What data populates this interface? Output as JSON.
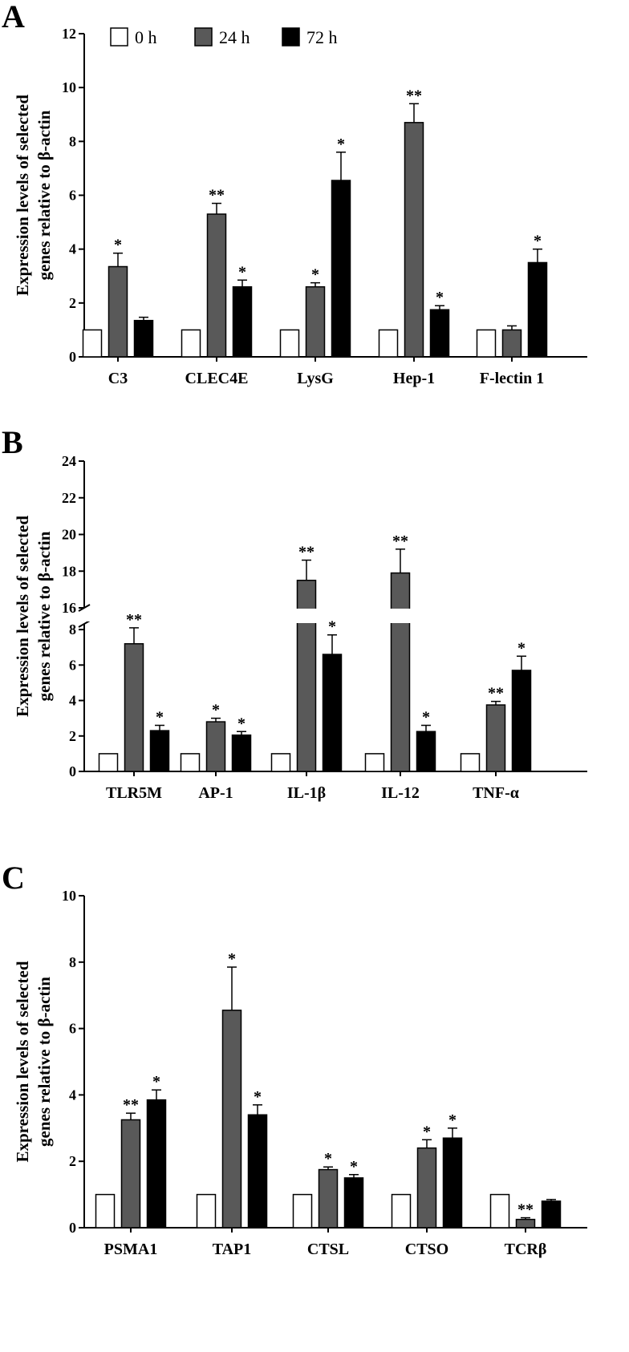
{
  "colors": {
    "0 h": "#ffffff",
    "24 h": "#595959",
    "72 h": "#000000",
    "axis": "#000000"
  },
  "legend": {
    "items": [
      "0 h",
      "24 h",
      "72 h"
    ],
    "placement": "top"
  },
  "chart_data": [
    {
      "panel": "A",
      "type": "bar",
      "ylabel_lines": [
        "Expression levels of selected",
        "genes relative to β-actin"
      ],
      "ylim": [
        0,
        12
      ],
      "yticks": [
        0,
        2,
        4,
        6,
        8,
        10,
        12
      ],
      "categories": [
        "C3",
        "CLEC4E",
        "LysG",
        "Hep-1",
        "F-lectin 1"
      ],
      "series": [
        {
          "name": "0 h",
          "values": [
            1,
            1,
            1,
            1,
            1
          ],
          "errors": [
            0,
            0,
            0,
            0,
            0
          ],
          "sig": [
            "",
            "",
            "",
            "",
            ""
          ]
        },
        {
          "name": "24 h",
          "values": [
            3.35,
            5.3,
            2.6,
            8.7,
            1.0
          ],
          "errors": [
            0.5,
            0.4,
            0.15,
            0.7,
            0.15
          ],
          "sig": [
            "*",
            "**",
            "*",
            "**",
            ""
          ]
        },
        {
          "name": "72 h",
          "values": [
            1.35,
            2.6,
            6.55,
            1.75,
            3.5
          ],
          "errors": [
            0.12,
            0.25,
            1.05,
            0.15,
            0.5
          ],
          "sig": [
            "",
            "*",
            "*",
            "*",
            "*"
          ]
        }
      ]
    },
    {
      "panel": "B",
      "type": "bar",
      "axis_break": {
        "lower": [
          0,
          9
        ],
        "upper": [
          16,
          24
        ]
      },
      "ylabel_lines": [
        "Expression levels of selected",
        "genes relative to β-actin"
      ],
      "yticks_lower": [
        0,
        2,
        4,
        6,
        8
      ],
      "yticks_upper": [
        16,
        18,
        20,
        22,
        24
      ],
      "categories": [
        "TLR5M",
        "AP-1",
        "IL-1β",
        "IL-12",
        "TNF-α"
      ],
      "series": [
        {
          "name": "0 h",
          "values": [
            1,
            1,
            1,
            1,
            1
          ],
          "errors": [
            0,
            0,
            0,
            0,
            0
          ],
          "sig": [
            "",
            "",
            "",
            "",
            ""
          ]
        },
        {
          "name": "24 h",
          "values": [
            7.2,
            2.8,
            17.5,
            17.9,
            3.75
          ],
          "errors": [
            0.9,
            0.2,
            1.1,
            1.3,
            0.2
          ],
          "sig": [
            "**",
            "*",
            "**",
            "**",
            "**"
          ]
        },
        {
          "name": "72 h",
          "values": [
            2.3,
            2.05,
            6.6,
            2.25,
            5.7
          ],
          "errors": [
            0.3,
            0.2,
            1.1,
            0.35,
            0.8
          ],
          "sig": [
            "*",
            "*",
            "*",
            "*",
            "*"
          ]
        }
      ]
    },
    {
      "panel": "C",
      "type": "bar",
      "ylabel_lines": [
        "Expression levels of selected",
        "genes relative to β-actin"
      ],
      "ylim": [
        0,
        10
      ],
      "yticks": [
        0,
        2,
        4,
        6,
        8,
        10
      ],
      "categories": [
        "PSMA1",
        "TAP1",
        "CTSL",
        "CTSO",
        "TCRβ"
      ],
      "series": [
        {
          "name": "0 h",
          "values": [
            1,
            1,
            1,
            1,
            1
          ],
          "errors": [
            0,
            0,
            0,
            0,
            0
          ],
          "sig": [
            "",
            "",
            "",
            "",
            ""
          ]
        },
        {
          "name": "24 h",
          "values": [
            3.25,
            6.55,
            1.75,
            2.4,
            0.25
          ],
          "errors": [
            0.2,
            1.3,
            0.08,
            0.25,
            0.05
          ],
          "sig": [
            "**",
            "*",
            "*",
            "*",
            "**"
          ]
        },
        {
          "name": "72 h",
          "values": [
            3.85,
            3.4,
            1.5,
            2.7,
            0.8
          ],
          "errors": [
            0.3,
            0.3,
            0.1,
            0.3,
            0.05
          ],
          "sig": [
            "*",
            "*",
            "*",
            "*",
            ""
          ]
        }
      ]
    }
  ]
}
